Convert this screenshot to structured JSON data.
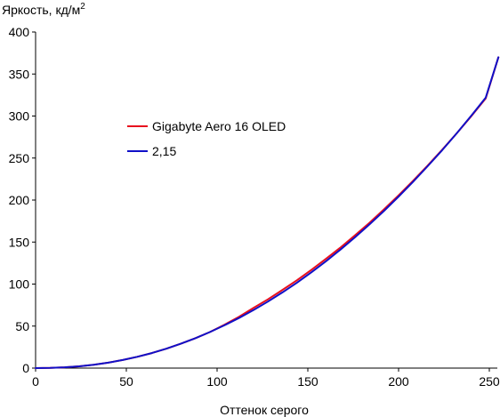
{
  "chart_data": {
    "type": "line",
    "ylabel": "Яркость, кд/м",
    "ylabel_sup": "2",
    "xlabel": "Оттенок серого",
    "xlim": [
      0,
      255
    ],
    "ylim": [
      0,
      400
    ],
    "xticks": [
      0,
      50,
      100,
      150,
      200,
      250
    ],
    "yticks": [
      0,
      50,
      100,
      150,
      200,
      250,
      300,
      350,
      400
    ],
    "grid": false,
    "legend_position": "upper-left",
    "series": [
      {
        "name": "Gigabyte Aero 16 OLED",
        "color": "#e8101e",
        "x": [
          0,
          8,
          16,
          24,
          32,
          40,
          48,
          56,
          64,
          72,
          80,
          88,
          96,
          104,
          112,
          120,
          128,
          136,
          144,
          152,
          160,
          168,
          176,
          184,
          192,
          200,
          208,
          216,
          224,
          232,
          240,
          248,
          255
        ],
        "y": [
          0,
          0.2,
          0.9,
          2.1,
          4,
          6.5,
          9.6,
          13.4,
          17.9,
          23.1,
          29,
          35.6,
          42.9,
          51.5,
          61,
          71.5,
          81.8,
          93,
          104.5,
          117,
          130,
          143.5,
          158,
          173,
          189,
          205.6,
          223,
          240.9,
          259.9,
          279.4,
          299.7,
          320.8,
          370
        ]
      },
      {
        "name": "2,15",
        "color": "#1010c8",
        "x": [
          0,
          8,
          16,
          24,
          32,
          40,
          48,
          56,
          64,
          72,
          80,
          88,
          96,
          104,
          112,
          120,
          128,
          136,
          144,
          152,
          160,
          168,
          176,
          184,
          192,
          200,
          208,
          216,
          224,
          232,
          240,
          248,
          255
        ],
        "y": [
          0,
          0.2,
          0.9,
          2.1,
          4,
          6.5,
          9.6,
          13.4,
          17.9,
          23.1,
          29,
          35.6,
          42.9,
          50.9,
          59.6,
          69,
          79.2,
          90.1,
          101.7,
          114.1,
          127.2,
          141.1,
          155.7,
          171.1,
          187.2,
          204.1,
          221.8,
          240.2,
          259.4,
          279.4,
          300.2,
          321.8,
          370
        ]
      }
    ]
  }
}
